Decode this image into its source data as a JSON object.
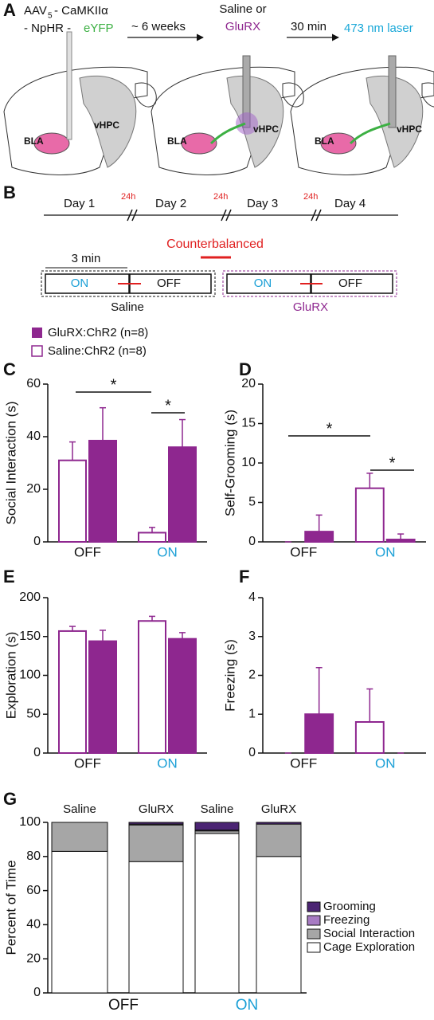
{
  "panel_a": {
    "label": "A",
    "vector": [
      "AAV",
      "5",
      "- CaMKIIα",
      "- NpHR -",
      "eYFP"
    ],
    "steps": [
      "~ 6 weeks",
      "30 min"
    ],
    "treatment": [
      "Saline or",
      "GluRX"
    ],
    "laser": "473 nm laser",
    "regions": [
      "BLA",
      "vHPC"
    ]
  },
  "panel_b": {
    "label": "B",
    "days": [
      "Day 1",
      "Day 2",
      "Day 3",
      "Day 4"
    ],
    "gap": "24h",
    "counterbalanced": "Counterbalanced",
    "duration": "3 min",
    "conditions": [
      "ON",
      "OFF"
    ],
    "groups": [
      "Saline",
      "GluRX"
    ]
  },
  "chart_data": [
    {
      "type": "bar",
      "panel": "C",
      "ylabel": "Social Interaction (s)",
      "categories": [
        "OFF",
        "ON"
      ],
      "ylim": [
        0,
        60
      ],
      "yticks": [
        0,
        20,
        40,
        60
      ],
      "series": [
        {
          "name": "Saline:ChR2 (n=8)",
          "color": "#ffffff",
          "edge": "#8e278f",
          "values": [
            31,
            3.5
          ],
          "errors": [
            7,
            2
          ]
        },
        {
          "name": "GluRX:ChR2 (n=8)",
          "color": "#8e278f",
          "edge": "#8e278f",
          "values": [
            38.5,
            36
          ],
          "errors": [
            12.5,
            10.5
          ]
        }
      ],
      "annotations": [
        "*",
        "*"
      ]
    },
    {
      "type": "bar",
      "panel": "D",
      "ylabel": "Self-Grooming (s)",
      "categories": [
        "OFF",
        "ON"
      ],
      "ylim": [
        0,
        20
      ],
      "yticks": [
        0,
        5,
        10,
        15,
        20
      ],
      "series": [
        {
          "name": "Saline:ChR2 (n=8)",
          "color": "#ffffff",
          "edge": "#8e278f",
          "values": [
            0,
            6.8
          ],
          "errors": [
            0,
            1.9
          ]
        },
        {
          "name": "GluRX:ChR2 (n=8)",
          "color": "#8e278f",
          "edge": "#8e278f",
          "values": [
            1.3,
            0.3
          ],
          "errors": [
            2.1,
            0.7
          ]
        }
      ],
      "annotations": [
        "*",
        "*"
      ]
    },
    {
      "type": "bar",
      "panel": "E",
      "ylabel": "Exploration (s)",
      "categories": [
        "OFF",
        "ON"
      ],
      "ylim": [
        0,
        200
      ],
      "yticks": [
        0,
        50,
        100,
        150,
        200
      ],
      "series": [
        {
          "name": "Saline:ChR2 (n=8)",
          "color": "#ffffff",
          "edge": "#8e278f",
          "values": [
            157,
            170
          ],
          "errors": [
            6,
            6
          ]
        },
        {
          "name": "GluRX:ChR2 (n=8)",
          "color": "#8e278f",
          "edge": "#8e278f",
          "values": [
            144,
            147
          ],
          "errors": [
            14,
            8
          ]
        }
      ]
    },
    {
      "type": "bar",
      "panel": "F",
      "ylabel": "Freezing (s)",
      "categories": [
        "OFF",
        "ON"
      ],
      "ylim": [
        0,
        4
      ],
      "yticks": [
        0,
        1,
        2,
        3,
        4
      ],
      "series": [
        {
          "name": "Saline:ChR2 (n=8)",
          "color": "#ffffff",
          "edge": "#8e278f",
          "values": [
            0,
            0.8
          ],
          "errors": [
            0,
            0.85
          ]
        },
        {
          "name": "GluRX:ChR2 (n=8)",
          "color": "#8e278f",
          "edge": "#8e278f",
          "values": [
            1.0,
            0
          ],
          "errors": [
            1.2,
            0
          ]
        }
      ]
    },
    {
      "type": "stacked",
      "panel": "G",
      "ylabel": "Percent of Time",
      "categories": [
        "Saline",
        "GluRX",
        "Saline",
        "GluRX"
      ],
      "groups": [
        "OFF",
        "ON"
      ],
      "ylim": [
        0,
        100
      ],
      "yticks": [
        0,
        20,
        40,
        60,
        80,
        100
      ],
      "series": [
        {
          "name": "Cage Exploration",
          "color": "#ffffff",
          "values": [
            83,
            77,
            93.5,
            80
          ]
        },
        {
          "name": "Social Interaction",
          "color": "#a6a6a6",
          "values": [
            17,
            21.5,
            1.5,
            19
          ]
        },
        {
          "name": "Freezing",
          "color": "#a77bc3",
          "values": [
            0,
            0.5,
            0.5,
            0
          ]
        },
        {
          "name": "Grooming",
          "color": "#4b2473",
          "values": [
            0,
            1,
            4.5,
            1
          ]
        }
      ]
    }
  ]
}
